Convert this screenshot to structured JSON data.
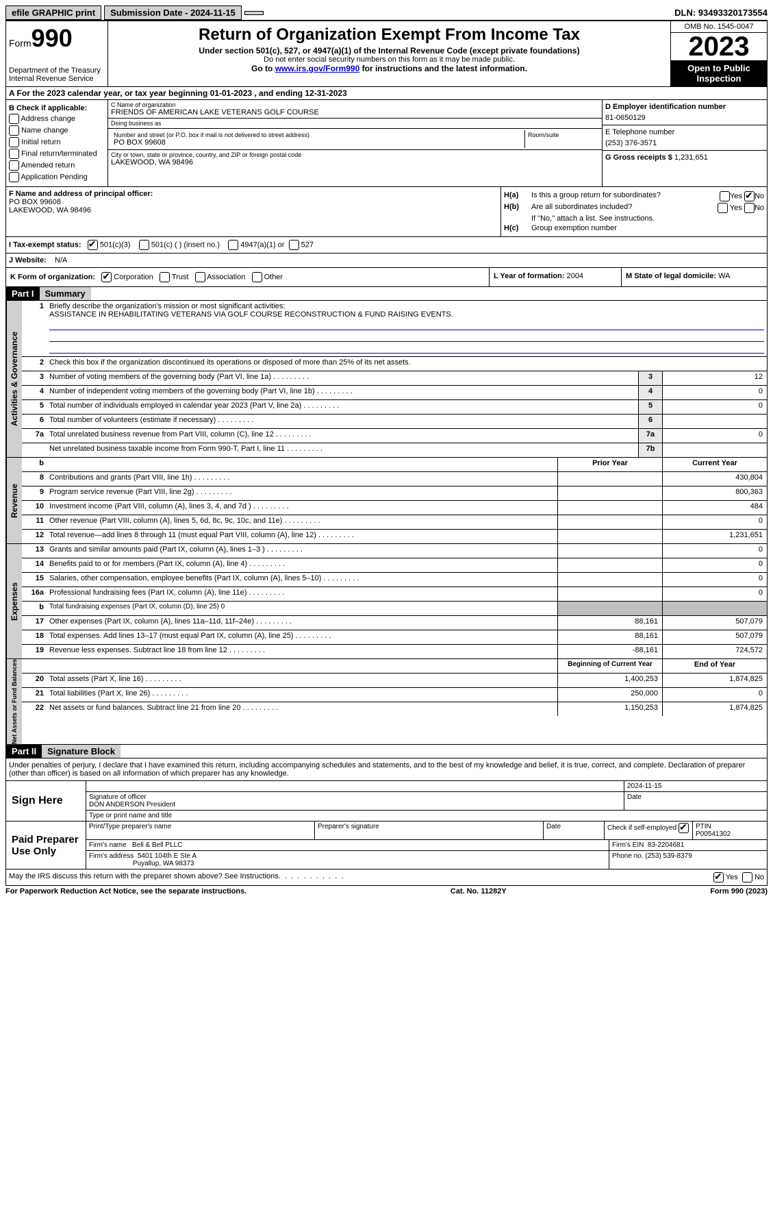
{
  "topbar": {
    "efile": "efile GRAPHIC print",
    "submission": "Submission Date - 2024-11-15",
    "dln": "DLN: 93493320173554"
  },
  "header": {
    "form_label": "Form",
    "form_num": "990",
    "dept": "Department of the Treasury\nInternal Revenue Service",
    "title": "Return of Organization Exempt From Income Tax",
    "sub1": "Under section 501(c), 527, or 4947(a)(1) of the Internal Revenue Code (except private foundations)",
    "sub2": "Do not enter social security numbers on this form as it may be made public.",
    "sub3_pre": "Go to ",
    "sub3_link": "www.irs.gov/Form990",
    "sub3_post": " for instructions and the latest information.",
    "omb": "OMB No. 1545-0047",
    "year": "2023",
    "open": "Open to Public Inspection"
  },
  "row_a": "A   For the 2023 calendar year, or tax year beginning 01-01-2023    , and ending 12-31-2023",
  "col_b": {
    "title": "B Check if applicable:",
    "items": [
      "Address change",
      "Name change",
      "Initial return",
      "Final return/terminated",
      "Amended return",
      "Application Pending"
    ]
  },
  "col_c": {
    "name_label": "C Name of organization",
    "name": "FRIENDS OF AMERICAN LAKE VETERANS GOLF COURSE",
    "dba_label": "Doing business as",
    "dba": "",
    "addr_label": "Number and street (or P.O. box if mail is not delivered to street address)",
    "addr": "PO BOX 99608",
    "room_label": "Room/suite",
    "city_label": "City or town, state or province, country, and ZIP or foreign postal code",
    "city": "LAKEWOOD, WA  98496"
  },
  "col_d": {
    "ein_label": "D Employer identification number",
    "ein": "81-0650129",
    "tel_label": "E Telephone number",
    "tel": "(253) 376-3571",
    "gross_label": "G Gross receipts $",
    "gross": "1,231,651"
  },
  "col_f": {
    "label": "F  Name and address of principal officer:",
    "name": "",
    "addr1": "PO BOX 99608",
    "addr2": "LAKEWOOD, WA  98496"
  },
  "col_h": {
    "ha_label": "H(a)",
    "ha_text": "Is this a group return for subordinates?",
    "ha_yes": "Yes",
    "ha_no": "No",
    "ha_checked": "no",
    "hb_label": "H(b)",
    "hb_text": "Are all subordinates included?",
    "hb_note": "If \"No,\" attach a list. See instructions.",
    "hc_label": "H(c)",
    "hc_text": "Group exemption number"
  },
  "row_i": {
    "label": "I   Tax-exempt status:",
    "opt1": "501(c)(3)",
    "opt2": "501(c) (  ) (insert no.)",
    "opt3": "4947(a)(1) or",
    "opt4": "527"
  },
  "row_j": {
    "label": "J   Website:",
    "val": "N/A"
  },
  "row_k": {
    "label": "K Form of organization:",
    "opts": [
      "Corporation",
      "Trust",
      "Association",
      "Other"
    ],
    "l_label": "L Year of formation:",
    "l_val": "2004",
    "m_label": "M State of legal domicile:",
    "m_val": "WA"
  },
  "part1": {
    "header": "Part I",
    "title": "Summary",
    "l1_label": "Briefly describe the organization's mission or most significant activities:",
    "l1_text": "ASSISTANCE IN REHABILITATING VETERANS VIA GOLF COURSE RECONSTRUCTION & FUND RAISING EVENTS.",
    "l2": "Check this box        if the organization discontinued its operations or disposed of more than 25% of its net assets.",
    "side1": "Activities & Governance",
    "side2": "Revenue",
    "side3": "Expenses",
    "side4": "Net Assets or Fund Balances",
    "rows_gov": [
      {
        "n": "3",
        "d": "Number of voting members of the governing body (Part VI, line 1a)",
        "b": "3",
        "v": "12"
      },
      {
        "n": "4",
        "d": "Number of independent voting members of the governing body (Part VI, line 1b)",
        "b": "4",
        "v": "0"
      },
      {
        "n": "5",
        "d": "Total number of individuals employed in calendar year 2023 (Part V, line 2a)",
        "b": "5",
        "v": "0"
      },
      {
        "n": "6",
        "d": "Total number of volunteers (estimate if necessary)",
        "b": "6",
        "v": ""
      },
      {
        "n": "7a",
        "d": "Total unrelated business revenue from Part VIII, column (C), line 12",
        "b": "7a",
        "v": "0"
      },
      {
        "n": "",
        "d": "Net unrelated business taxable income from Form 990-T, Part I, line 11",
        "b": "7b",
        "v": ""
      }
    ],
    "hdr_b": "b",
    "hdr_prior": "Prior Year",
    "hdr_curr": "Current Year",
    "rows_rev": [
      {
        "n": "8",
        "d": "Contributions and grants (Part VIII, line 1h)",
        "p": "",
        "c": "430,804"
      },
      {
        "n": "9",
        "d": "Program service revenue (Part VIII, line 2g)",
        "p": "",
        "c": "800,363"
      },
      {
        "n": "10",
        "d": "Investment income (Part VIII, column (A), lines 3, 4, and 7d )",
        "p": "",
        "c": "484"
      },
      {
        "n": "11",
        "d": "Other revenue (Part VIII, column (A), lines 5, 6d, 8c, 9c, 10c, and 11e)",
        "p": "",
        "c": "0"
      },
      {
        "n": "12",
        "d": "Total revenue—add lines 8 through 11 (must equal Part VIII, column (A), line 12)",
        "p": "",
        "c": "1,231,651"
      }
    ],
    "rows_exp": [
      {
        "n": "13",
        "d": "Grants and similar amounts paid (Part IX, column (A), lines 1–3 )",
        "p": "",
        "c": "0"
      },
      {
        "n": "14",
        "d": "Benefits paid to or for members (Part IX, column (A), line 4)",
        "p": "",
        "c": "0"
      },
      {
        "n": "15",
        "d": "Salaries, other compensation, employee benefits (Part IX, column (A), lines 5–10)",
        "p": "",
        "c": "0"
      },
      {
        "n": "16a",
        "d": "Professional fundraising fees (Part IX, column (A), line 11e)",
        "p": "",
        "c": "0"
      },
      {
        "n": "b",
        "d": "Total fundraising expenses (Part IX, column (D), line 25) 0",
        "p": "grey",
        "c": "grey"
      },
      {
        "n": "17",
        "d": "Other expenses (Part IX, column (A), lines 11a–11d, 11f–24e)",
        "p": "88,161",
        "c": "507,079"
      },
      {
        "n": "18",
        "d": "Total expenses. Add lines 13–17 (must equal Part IX, column (A), line 25)",
        "p": "88,161",
        "c": "507,079"
      },
      {
        "n": "19",
        "d": "Revenue less expenses. Subtract line 18 from line 12",
        "p": "-88,161",
        "c": "724,572"
      }
    ],
    "hdr_begin": "Beginning of Current Year",
    "hdr_end": "End of Year",
    "rows_net": [
      {
        "n": "20",
        "d": "Total assets (Part X, line 16)",
        "p": "1,400,253",
        "c": "1,874,825"
      },
      {
        "n": "21",
        "d": "Total liabilities (Part X, line 26)",
        "p": "250,000",
        "c": "0"
      },
      {
        "n": "22",
        "d": "Net assets or fund balances. Subtract line 21 from line 20",
        "p": "1,150,253",
        "c": "1,874,825"
      }
    ]
  },
  "part2": {
    "header": "Part II",
    "title": "Signature Block",
    "perjury": "Under penalties of perjury, I declare that I have examined this return, including accompanying schedules and statements, and to the best of my knowledge and belief, it is true, correct, and complete. Declaration of preparer (other than officer) is based on all information of which preparer has any knowledge.",
    "sign_here": "Sign Here",
    "sig_date": "2024-11-15",
    "sig_officer_label": "Signature of officer",
    "sig_officer": "DON ANDERSON President",
    "sig_type_label": "Type or print name and title",
    "date_label": "Date",
    "paid": "Paid Preparer Use Only",
    "prep_name_label": "Print/Type preparer's name",
    "prep_sig_label": "Preparer's signature",
    "prep_date_label": "Date",
    "check_self": "Check        if self-employed",
    "ptin_label": "PTIN",
    "ptin": "P00541302",
    "firm_name_label": "Firm's name",
    "firm_name": "Bell & Bell PLLC",
    "firm_ein_label": "Firm's EIN",
    "firm_ein": "83-2204681",
    "firm_addr_label": "Firm's address",
    "firm_addr1": "5401 104th E Ste A",
    "firm_addr2": "Puyallup, WA  98373",
    "phone_label": "Phone no.",
    "phone": "(253) 539-8379",
    "discuss": "May the IRS discuss this return with the preparer shown above? See Instructions.",
    "discuss_yes": "Yes",
    "discuss_no": "No"
  },
  "footer": {
    "left": "For Paperwork Reduction Act Notice, see the separate instructions.",
    "mid": "Cat. No. 11282Y",
    "right": "Form 990 (2023)"
  }
}
